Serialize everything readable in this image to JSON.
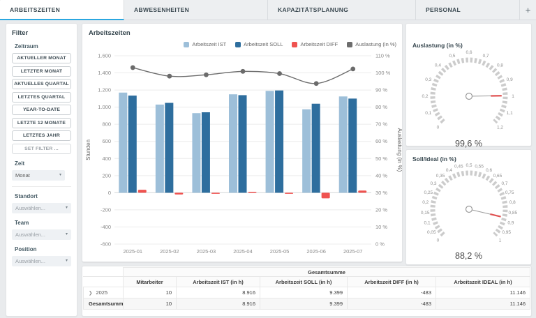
{
  "tabs": {
    "items": [
      {
        "label": "ARBEITSZEITEN",
        "active": true
      },
      {
        "label": "ABWESENHEITEN",
        "active": false
      },
      {
        "label": "KAPAZITÄTSPLANUNG",
        "active": false
      },
      {
        "label": "PERSONAL",
        "active": false
      }
    ],
    "add_button": "+"
  },
  "colors": {
    "accent_blue": "#2ba7e0",
    "bar_ist": "#9dbfd9",
    "bar_soll": "#2e6e9e",
    "bar_diff": "#ef5350",
    "line_auslastung": "#6d6d6d",
    "gauge_arc": "#cccccc",
    "needle_gray": "#9a9a9a",
    "needle_red": "#e05252"
  },
  "filter": {
    "title": "Filter",
    "zeitraum_label": "Zeitraum",
    "preset_buttons": [
      "AKTUELLER MONAT",
      "LETZTER MONAT",
      "AKTUELLES QUARTAL",
      "LETZTES QUARTAL",
      "YEAR-TO-DATE",
      "LETZTE 12 MONATE",
      "LETZTES JAHR"
    ],
    "set_filter_button": "SET FILTER ...",
    "zeit_label": "Zeit",
    "zeit_value": "Monat",
    "standort_label": "Standort",
    "standort_placeholder": "Auswählen...",
    "team_label": "Team",
    "team_placeholder": "Auswählen...",
    "position_label": "Position",
    "position_placeholder": "Auswählen..."
  },
  "chart_panel": {
    "title": "Arbeitszeiten"
  },
  "chart_data": [
    {
      "type": "bar+line",
      "title": "Arbeitszeiten",
      "categories": [
        "2025-01",
        "2025-02",
        "2025-03",
        "2025-04",
        "2025-05",
        "2025-06",
        "2025-07"
      ],
      "series": [
        {
          "name": "Arbeitszeit IST",
          "type": "bar",
          "axis": "left",
          "values": [
            1170,
            1030,
            930,
            1150,
            1190,
            975,
            1125
          ]
        },
        {
          "name": "Arbeitszeit SOLL",
          "type": "bar",
          "axis": "left",
          "values": [
            1135,
            1050,
            940,
            1140,
            1195,
            1040,
            1100
          ]
        },
        {
          "name": "Arbeitszeit DIFF",
          "type": "bar",
          "axis": "left",
          "values": [
            35,
            -20,
            -10,
            10,
            -5,
            -65,
            25
          ]
        },
        {
          "name": "Auslastung (in %)",
          "type": "line",
          "axis": "right",
          "values": [
            103.1,
            98.1,
            98.9,
            100.9,
            99.6,
            93.8,
            102.3
          ]
        }
      ],
      "ylabel_left": "Stunden",
      "ylim_left": [
        -600,
        1600
      ],
      "ytick_step_left": 200,
      "ylabel_right": "Auslastung (in %)",
      "ylim_right": [
        0,
        110
      ],
      "ytick_step_right": 10,
      "grid": true,
      "legend_position": "top-right"
    },
    {
      "type": "gauge",
      "title": "Auslastung (in %)",
      "min": 0,
      "max": 1.2,
      "tick_step": 0.1,
      "value": 0.996,
      "value_label": "99,6 %"
    },
    {
      "type": "gauge",
      "title": "Soll/Ideal (in %)",
      "min": 0,
      "max": 1,
      "tick_step": 0.05,
      "value": 0.882,
      "value_label": "88,2 %"
    }
  ],
  "table": {
    "group_header": "Gesamtsumme",
    "columns": [
      "",
      "Mitarbeiter",
      "Arbeitszeit IST (in h)",
      "Arbeitszeit SOLL (in h)",
      "Arbeitszeit DIFF (in h)",
      "Arbeitszeit IDEAL (in h)"
    ],
    "rows": [
      {
        "label": "2025",
        "expandable": true,
        "total": false,
        "values": [
          "10",
          "8.916",
          "9.399",
          "-483",
          "11.146"
        ]
      },
      {
        "label": "Gesamtsumme",
        "expandable": false,
        "total": true,
        "values": [
          "10",
          "8.916",
          "9.399",
          "-483",
          "11.146"
        ]
      }
    ]
  }
}
